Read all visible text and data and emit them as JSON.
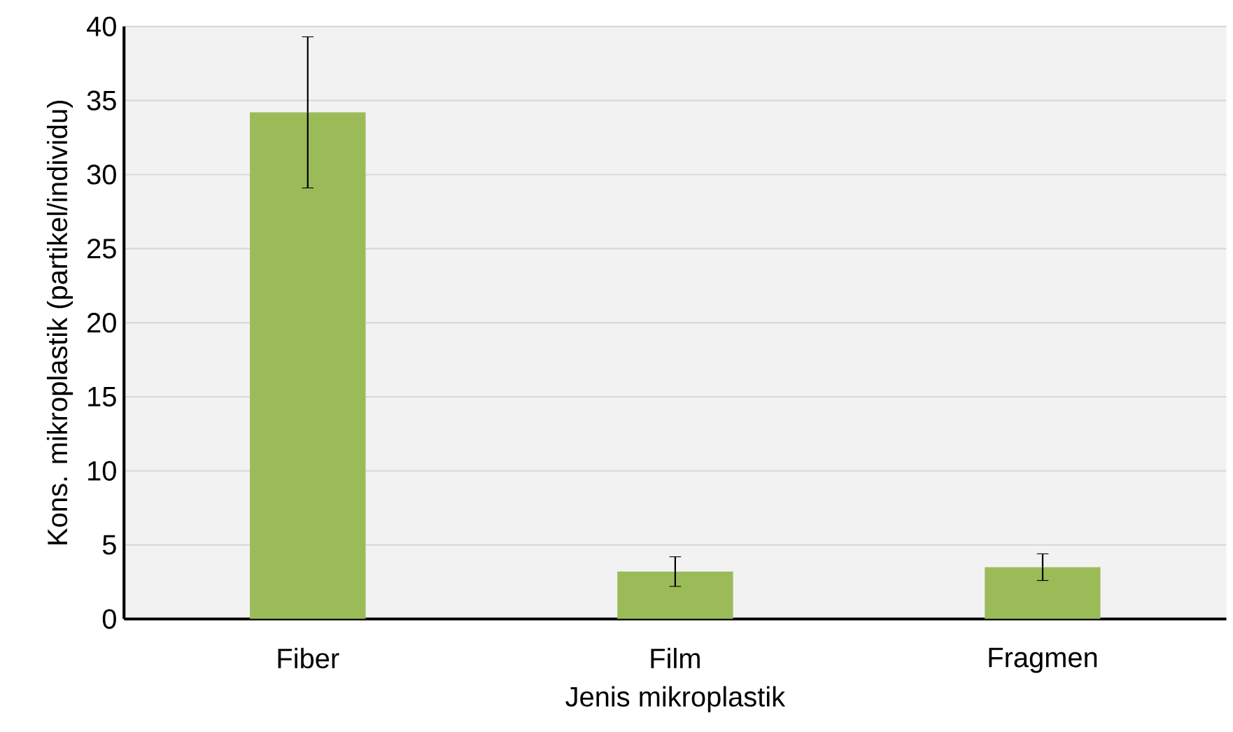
{
  "chart_data": {
    "type": "bar",
    "xlabel": "Jenis mikroplastik",
    "ylabel": "Kons. mikroplastik (partikel/individu)",
    "categories": [
      "Fiber",
      "Film",
      "Fragmen"
    ],
    "values": [
      34.2,
      3.2,
      3.5
    ],
    "errors": [
      5.1,
      1.0,
      0.9
    ],
    "color": "#9bbb59",
    "ylim": [
      0,
      40
    ],
    "yticks": [
      0,
      5,
      10,
      15,
      20,
      25,
      30,
      35,
      40
    ],
    "grid": "y"
  }
}
